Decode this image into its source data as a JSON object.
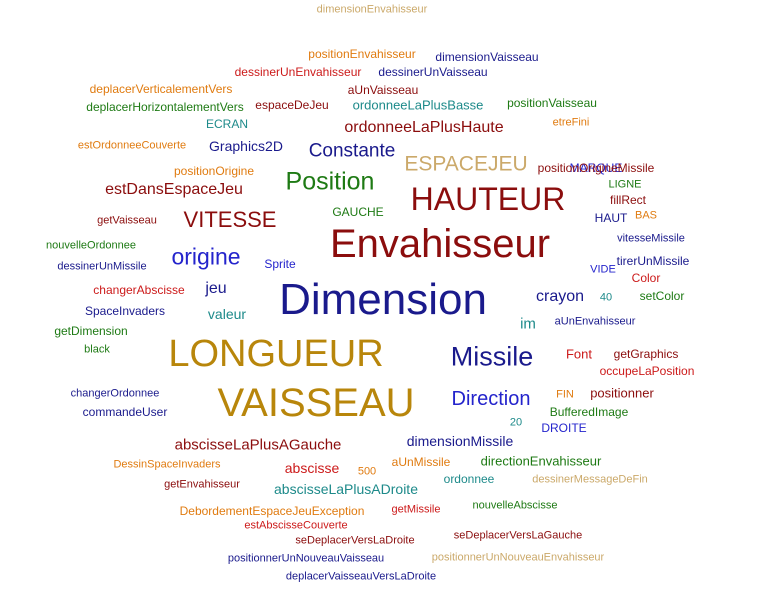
{
  "colors": {
    "navy": "#1a1a8c",
    "darkred": "#8b0d0d",
    "gold": "#b8860b",
    "green": "#1e7a14",
    "teal": "#1d8a8a",
    "blue": "#2424cc",
    "red": "#cc1a1a",
    "orange": "#e07b10",
    "tan": "#cba96a"
  },
  "words": [
    {
      "text": "dimensionEnvahisseur",
      "color": "tan"
    },
    {
      "text": "positionEnvahisseur",
      "color": "orange"
    },
    {
      "text": "dimensionVaisseau",
      "color": "navy"
    },
    {
      "text": "dessinerUnEnvahisseur",
      "color": "red"
    },
    {
      "text": "dessinerUnVaisseau",
      "color": "navy"
    },
    {
      "text": "deplacerVerticalementVers",
      "color": "orange"
    },
    {
      "text": "aUnVaisseau",
      "color": "darkred"
    },
    {
      "text": "deplacerHorizontalementVers",
      "color": "green"
    },
    {
      "text": "espaceDeJeu",
      "color": "darkred"
    },
    {
      "text": "ordonneeLaPlusBasse",
      "color": "teal"
    },
    {
      "text": "positionVaisseau",
      "color": "green"
    },
    {
      "text": "ECRAN",
      "color": "teal"
    },
    {
      "text": "ordonneeLaPlusHaute",
      "color": "darkred"
    },
    {
      "text": "etreFini",
      "color": "orange"
    },
    {
      "text": "estOrdonneeCouverte",
      "color": "orange"
    },
    {
      "text": "Graphics2D",
      "color": "navy"
    },
    {
      "text": "Constante",
      "color": "navy"
    },
    {
      "text": "ESPACEJEU",
      "color": "tan"
    },
    {
      "text": "MARQUE",
      "color": "blue"
    },
    {
      "text": "positionOrigine",
      "color": "orange"
    },
    {
      "text": "positionOrigineMissile",
      "color": "darkred"
    },
    {
      "text": "Position",
      "color": "green"
    },
    {
      "text": "estDansEspaceJeu",
      "color": "darkred"
    },
    {
      "text": "HAUTEUR",
      "color": "darkred"
    },
    {
      "text": "LIGNE",
      "color": "green"
    },
    {
      "text": "fillRect",
      "color": "darkred"
    },
    {
      "text": "GAUCHE",
      "color": "green"
    },
    {
      "text": "HAUT",
      "color": "navy"
    },
    {
      "text": "BAS",
      "color": "orange"
    },
    {
      "text": "getVaisseau",
      "color": "darkred"
    },
    {
      "text": "VITESSE",
      "color": "darkred"
    },
    {
      "text": "Envahisseur",
      "color": "darkred"
    },
    {
      "text": "vitesseMissile",
      "color": "navy"
    },
    {
      "text": "nouvelleOrdonnee",
      "color": "green"
    },
    {
      "text": "origine",
      "color": "blue"
    },
    {
      "text": "dessinerUnMissile",
      "color": "navy"
    },
    {
      "text": "Sprite",
      "color": "blue"
    },
    {
      "text": "tirerUnMissile",
      "color": "navy"
    },
    {
      "text": "VIDE",
      "color": "blue"
    },
    {
      "text": "Color",
      "color": "red"
    },
    {
      "text": "changerAbscisse",
      "color": "red"
    },
    {
      "text": "jeu",
      "color": "navy"
    },
    {
      "text": "Dimension",
      "color": "navy"
    },
    {
      "text": "crayon",
      "color": "navy"
    },
    {
      "text": "40",
      "color": "teal"
    },
    {
      "text": "setColor",
      "color": "green"
    },
    {
      "text": "SpaceInvaders",
      "color": "navy"
    },
    {
      "text": "valeur",
      "color": "teal"
    },
    {
      "text": "im",
      "color": "teal"
    },
    {
      "text": "aUnEnvahisseur",
      "color": "navy"
    },
    {
      "text": "getDimension",
      "color": "green"
    },
    {
      "text": "LONGUEUR",
      "color": "gold"
    },
    {
      "text": "Missile",
      "color": "navy"
    },
    {
      "text": "Font",
      "color": "red"
    },
    {
      "text": "getGraphics",
      "color": "darkred"
    },
    {
      "text": "black",
      "color": "green"
    },
    {
      "text": "occupeLaPosition",
      "color": "red"
    },
    {
      "text": "changerOrdonnee",
      "color": "navy"
    },
    {
      "text": "VAISSEAU",
      "color": "gold"
    },
    {
      "text": "Direction",
      "color": "blue"
    },
    {
      "text": "FIN",
      "color": "orange"
    },
    {
      "text": "positionner",
      "color": "darkred"
    },
    {
      "text": "commandeUser",
      "color": "navy"
    },
    {
      "text": "BufferedImage",
      "color": "green"
    },
    {
      "text": "20",
      "color": "teal"
    },
    {
      "text": "DROITE",
      "color": "blue"
    },
    {
      "text": "abscisseLaPlusAGauche",
      "color": "darkred"
    },
    {
      "text": "dimensionMissile",
      "color": "navy"
    },
    {
      "text": "DessinSpaceInvaders",
      "color": "orange"
    },
    {
      "text": "aUnMissile",
      "color": "orange"
    },
    {
      "text": "directionEnvahisseur",
      "color": "green"
    },
    {
      "text": "abscisse",
      "color": "red"
    },
    {
      "text": "500",
      "color": "orange"
    },
    {
      "text": "ordonnee",
      "color": "teal"
    },
    {
      "text": "dessinerMessageDeFin",
      "color": "tan"
    },
    {
      "text": "getEnvahisseur",
      "color": "darkred"
    },
    {
      "text": "abscisseLaPlusADroite",
      "color": "teal"
    },
    {
      "text": "nouvelleAbscisse",
      "color": "green"
    },
    {
      "text": "DebordementEspaceJeuException",
      "color": "orange"
    },
    {
      "text": "getMissile",
      "color": "red"
    },
    {
      "text": "estAbscisseCouverte",
      "color": "red"
    },
    {
      "text": "seDeplacerVersLaGauche",
      "color": "darkred"
    },
    {
      "text": "seDeplacerVersLaDroite",
      "color": "darkred"
    },
    {
      "text": "positionnerUnNouveauVaisseau",
      "color": "navy"
    },
    {
      "text": "positionnerUnNouveauEnvahisseur",
      "color": "tan"
    },
    {
      "text": "deplacerVaisseauVersLaDroite",
      "color": "navy"
    }
  ]
}
